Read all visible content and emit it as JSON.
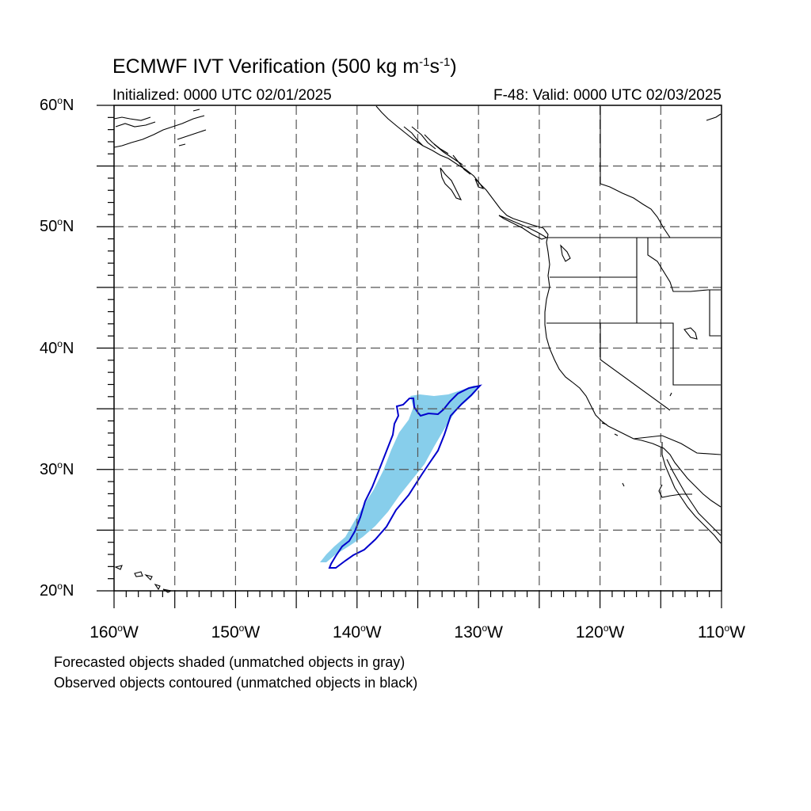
{
  "title": {
    "main": "ECMWF IVT Verification (500 kg m",
    "sup1": "-1",
    "mid": "s",
    "sup2": "-1",
    "end": ")"
  },
  "subtitle": {
    "left": "Initialized: 0000 UTC 02/01/2025",
    "right": "F-48: Valid: 0000 UTC 02/03/2025"
  },
  "axes": {
    "lat_labels": [
      {
        "num": "60",
        "hemi": "N"
      },
      {
        "num": "50",
        "hemi": "N"
      },
      {
        "num": "40",
        "hemi": "N"
      },
      {
        "num": "30",
        "hemi": "N"
      },
      {
        "num": "20",
        "hemi": "N"
      }
    ],
    "lon_labels": [
      {
        "num": "160",
        "hemi": "W"
      },
      {
        "num": "150",
        "hemi": "W"
      },
      {
        "num": "140",
        "hemi": "W"
      },
      {
        "num": "130",
        "hemi": "W"
      },
      {
        "num": "120",
        "hemi": "W"
      },
      {
        "num": "110",
        "hemi": "W"
      }
    ],
    "lat_range": [
      20,
      60
    ],
    "lon_range": [
      -160,
      -110
    ]
  },
  "legend": {
    "line1": "Forecasted objects shaded (unmatched objects in gray)",
    "line2": "Observed objects contoured (unmatched objects in black)"
  },
  "colors": {
    "forecast_fill": "#87ceeb",
    "observed_contour": "#0000cc",
    "coastline": "#000000",
    "grid": "#555555"
  }
}
